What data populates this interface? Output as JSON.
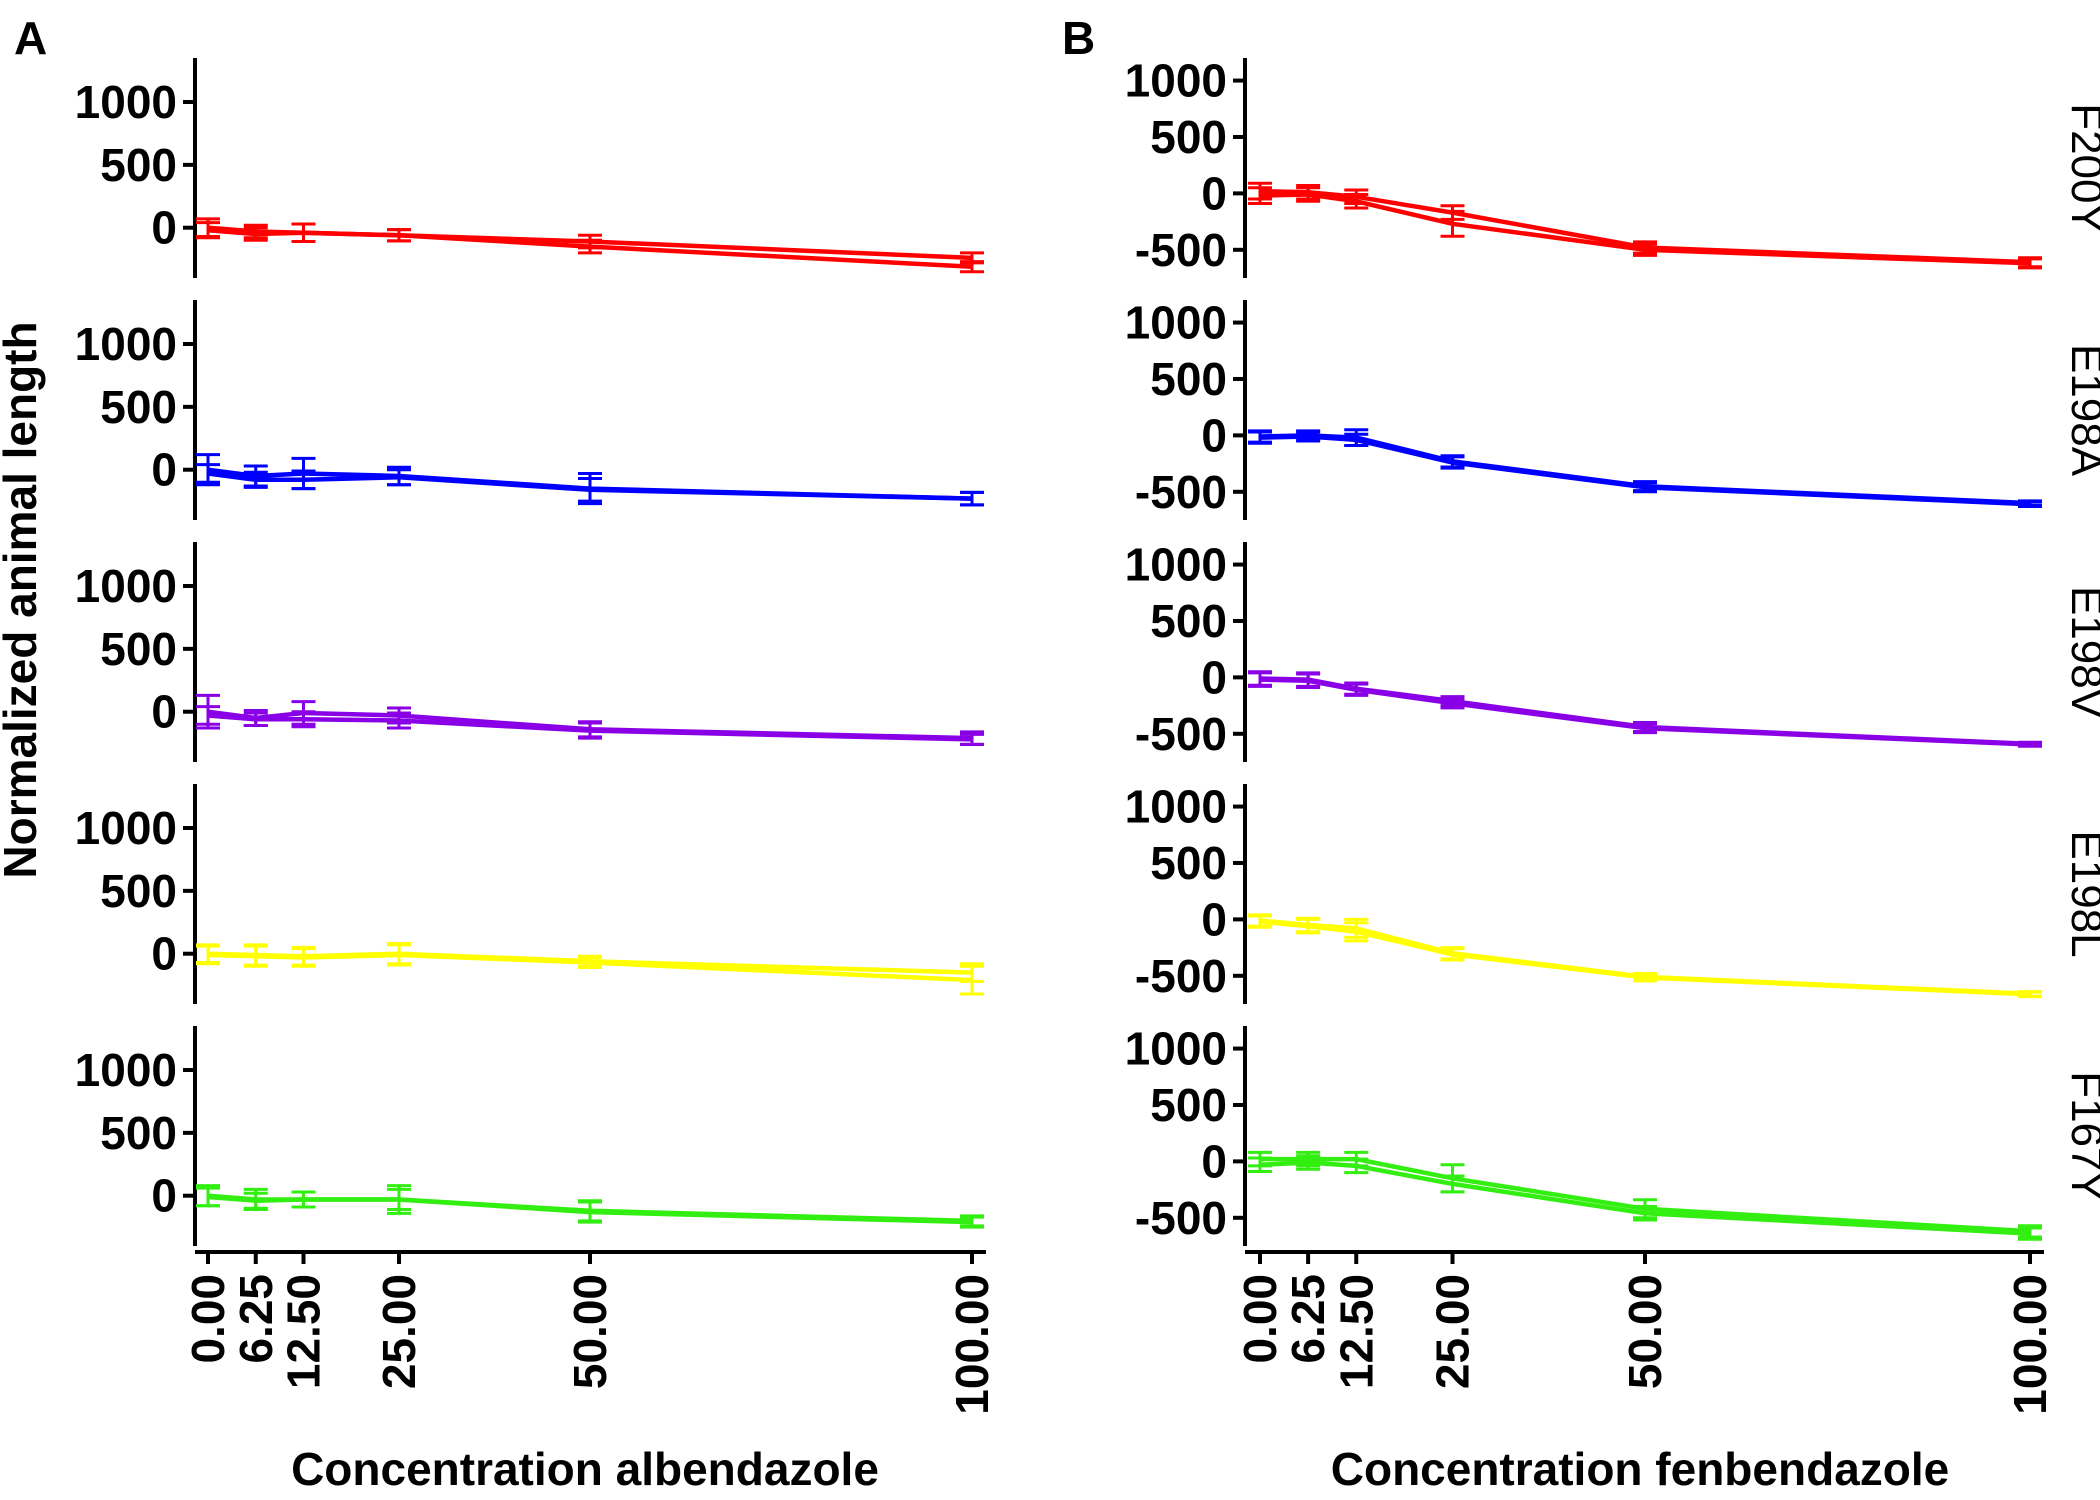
{
  "figure": {
    "panel_labels": [
      "A",
      "B"
    ],
    "y_axis_title": "Normalized animal length",
    "strip_labels": [
      "F200Y",
      "E198A",
      "E198V",
      "E198L",
      "F167Y"
    ]
  },
  "colors": {
    "F200Y": "#ff0000",
    "E198A": "#0000ff",
    "E198V": "#8a00e6",
    "E198L": "#ffff00",
    "F167Y": "#33ee11"
  },
  "chart_data": [
    {
      "type": "line",
      "panel": "A",
      "xlabel": "Concentration albendazole",
      "x": [
        0,
        6.25,
        12.5,
        25,
        50,
        100
      ],
      "x_tick_labels": [
        "0.00",
        "6.25",
        "12.50",
        "25.00",
        "50.00",
        "100.00"
      ],
      "y_tick_values": [
        0,
        500,
        1000
      ],
      "y_tick_labels": [
        "0",
        "500",
        "1000"
      ],
      "ylim": [
        -400,
        1350
      ],
      "facets": [
        {
          "strip": "F200Y",
          "color": "#ff0000",
          "series": [
            {
              "values": [
                0,
                -30,
                -40,
                -60,
                -110,
                -240
              ],
              "err": [
                70,
                50,
                70,
                45,
                50,
                40
              ]
            },
            {
              "values": [
                -20,
                -50,
                -40,
                -60,
                -150,
                -310
              ],
              "err": [
                60,
                50,
                70,
                45,
                50,
                40
              ]
            }
          ]
        },
        {
          "strip": "E198A",
          "color": "#0000ff",
          "series": [
            {
              "values": [
                0,
                -50,
                -30,
                -50,
                -150,
                -230
              ],
              "err": [
                120,
                80,
                120,
                70,
                120,
                50
              ]
            },
            {
              "values": [
                -30,
                -80,
                -80,
                -60,
                -160,
                -230
              ],
              "err": [
                70,
                60,
                70,
                60,
                90,
                50
              ]
            }
          ]
        },
        {
          "strip": "E198V",
          "color": "#8a00e6",
          "series": [
            {
              "values": [
                0,
                -50,
                -10,
                -30,
                -140,
                -210
              ],
              "err": [
                130,
                60,
                90,
                60,
                60,
                50
              ]
            },
            {
              "values": [
                -30,
                -60,
                -60,
                -70,
                -150,
                -220
              ],
              "err": [
                70,
                50,
                60,
                60,
                60,
                40
              ]
            }
          ]
        },
        {
          "strip": "E198L",
          "color": "#ffff00",
          "series": [
            {
              "values": [
                0,
                -10,
                -20,
                0,
                -60,
                -150
              ],
              "err": [
                70,
                80,
                70,
                80,
                40,
                70
              ]
            },
            {
              "values": [
                -10,
                -20,
                -30,
                -10,
                -70,
                -210
              ],
              "err": [
                70,
                80,
                70,
                80,
                40,
                110
              ]
            }
          ]
        },
        {
          "strip": "F167Y",
          "color": "#33ee11",
          "series": [
            {
              "values": [
                0,
                -30,
                -30,
                -30,
                -120,
                -200
              ],
              "err": [
                80,
                80,
                60,
                110,
                80,
                40
              ]
            },
            {
              "values": [
                -10,
                -40,
                -30,
                -30,
                -130,
                -210
              ],
              "err": [
                70,
                60,
                60,
                80,
                80,
                40
              ]
            }
          ]
        }
      ]
    },
    {
      "type": "line",
      "panel": "B",
      "xlabel": "Concentration fenbendazole",
      "x": [
        0,
        6.25,
        12.5,
        25,
        50,
        100
      ],
      "x_tick_labels": [
        "0.00",
        "6.25",
        "12.50",
        "25.00",
        "50.00",
        "100.00"
      ],
      "y_tick_values": [
        -500,
        0,
        500,
        1000
      ],
      "y_tick_labels": [
        "-500",
        "0",
        "500",
        "1000"
      ],
      "ylim": [
        -750,
        1200
      ],
      "facets": [
        {
          "strip": "F200Y",
          "color": "#ff0000",
          "series": [
            {
              "values": [
                20,
                10,
                -30,
                -170,
                -480,
                -610
              ],
              "err": [
                70,
                60,
                60,
                60,
                50,
                40
              ]
            },
            {
              "values": [
                -20,
                -10,
                -70,
                -270,
                -500,
                -620
              ],
              "err": [
                70,
                60,
                60,
                110,
                50,
                40
              ]
            }
          ]
        },
        {
          "strip": "E198A",
          "color": "#0000ff",
          "series": [
            {
              "values": [
                -10,
                0,
                -20,
                -230,
                -450,
                -600
              ],
              "err": [
                50,
                40,
                70,
                50,
                40,
                20
              ]
            },
            {
              "values": [
                -20,
                -10,
                -40,
                -240,
                -460,
                -610
              ],
              "err": [
                50,
                40,
                50,
                50,
                40,
                20
              ]
            }
          ]
        },
        {
          "strip": "E198V",
          "color": "#8a00e6",
          "series": [
            {
              "values": [
                -10,
                -20,
                -100,
                -210,
                -440,
                -590
              ],
              "err": [
                60,
                60,
                50,
                40,
                40,
                15
              ]
            },
            {
              "values": [
                -20,
                -30,
                -110,
                -230,
                -450,
                -595
              ],
              "err": [
                60,
                60,
                50,
                40,
                40,
                15
              ]
            }
          ]
        },
        {
          "strip": "E198L",
          "color": "#ffff00",
          "series": [
            {
              "values": [
                -10,
                -50,
                -80,
                -300,
                -510,
                -660
              ],
              "err": [
                50,
                60,
                80,
                50,
                30,
                20
              ]
            },
            {
              "values": [
                -20,
                -60,
                -110,
                -310,
                -515,
                -665
              ],
              "err": [
                50,
                60,
                80,
                50,
                30,
                20
              ]
            }
          ]
        },
        {
          "strip": "F167Y",
          "color": "#33ee11",
          "series": [
            {
              "values": [
                20,
                20,
                20,
                -150,
                -420,
                -620
              ],
              "err": [
                60,
                60,
                60,
                120,
                80,
                50
              ]
            },
            {
              "values": [
                -30,
                -10,
                -40,
                -200,
                -460,
                -640
              ],
              "err": [
                60,
                60,
                60,
                70,
                60,
                50
              ]
            }
          ]
        }
      ]
    }
  ]
}
